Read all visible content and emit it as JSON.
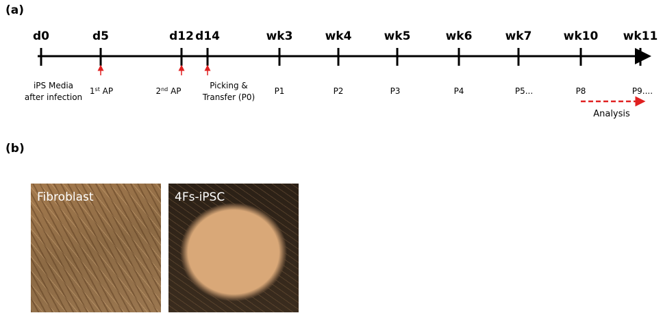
{
  "panels": {
    "a": "(a)",
    "b": "(b)"
  },
  "timeline": {
    "points": [
      {
        "label": "d0",
        "note": [
          [
            {
              "text": "iPS Media"
            }
          ],
          [
            {
              "text": "after infection"
            }
          ]
        ]
      },
      {
        "label": "d5",
        "marker": true,
        "note": [
          [
            {
              "text": "1"
            },
            {
              "text": "st",
              "sup": true
            },
            {
              "text": " AP"
            }
          ]
        ]
      },
      {
        "label": "d12",
        "marker": true,
        "note": [
          [
            {
              "text": "2"
            },
            {
              "text": "nd",
              "sup": true
            },
            {
              "text": " AP"
            }
          ]
        ]
      },
      {
        "label": "d14",
        "marker": true,
        "note": [
          [
            {
              "text": "Picking &"
            }
          ],
          [
            {
              "text": "Transfer (P0)"
            }
          ]
        ]
      },
      {
        "label": "wk3",
        "note": [
          [
            {
              "text": "P1"
            }
          ]
        ]
      },
      {
        "label": "wk4",
        "note": [
          [
            {
              "text": "P2"
            }
          ]
        ]
      },
      {
        "label": "wk5",
        "note": [
          [
            {
              "text": "P3"
            }
          ]
        ]
      },
      {
        "label": "wk6",
        "note": [
          [
            {
              "text": "P4"
            }
          ]
        ]
      },
      {
        "label": "wk7",
        "note": [
          [
            {
              "text": "P5..."
            }
          ]
        ]
      },
      {
        "label": "wk10",
        "note": [
          [
            {
              "text": "P8"
            }
          ]
        ]
      },
      {
        "label": "wk11",
        "note": [
          [
            {
              "text": "P9...."
            }
          ]
        ]
      }
    ],
    "analysis": "Analysis"
  },
  "images": [
    {
      "label": "Fibroblast"
    },
    {
      "label": "4Fs-iPSC"
    }
  ]
}
